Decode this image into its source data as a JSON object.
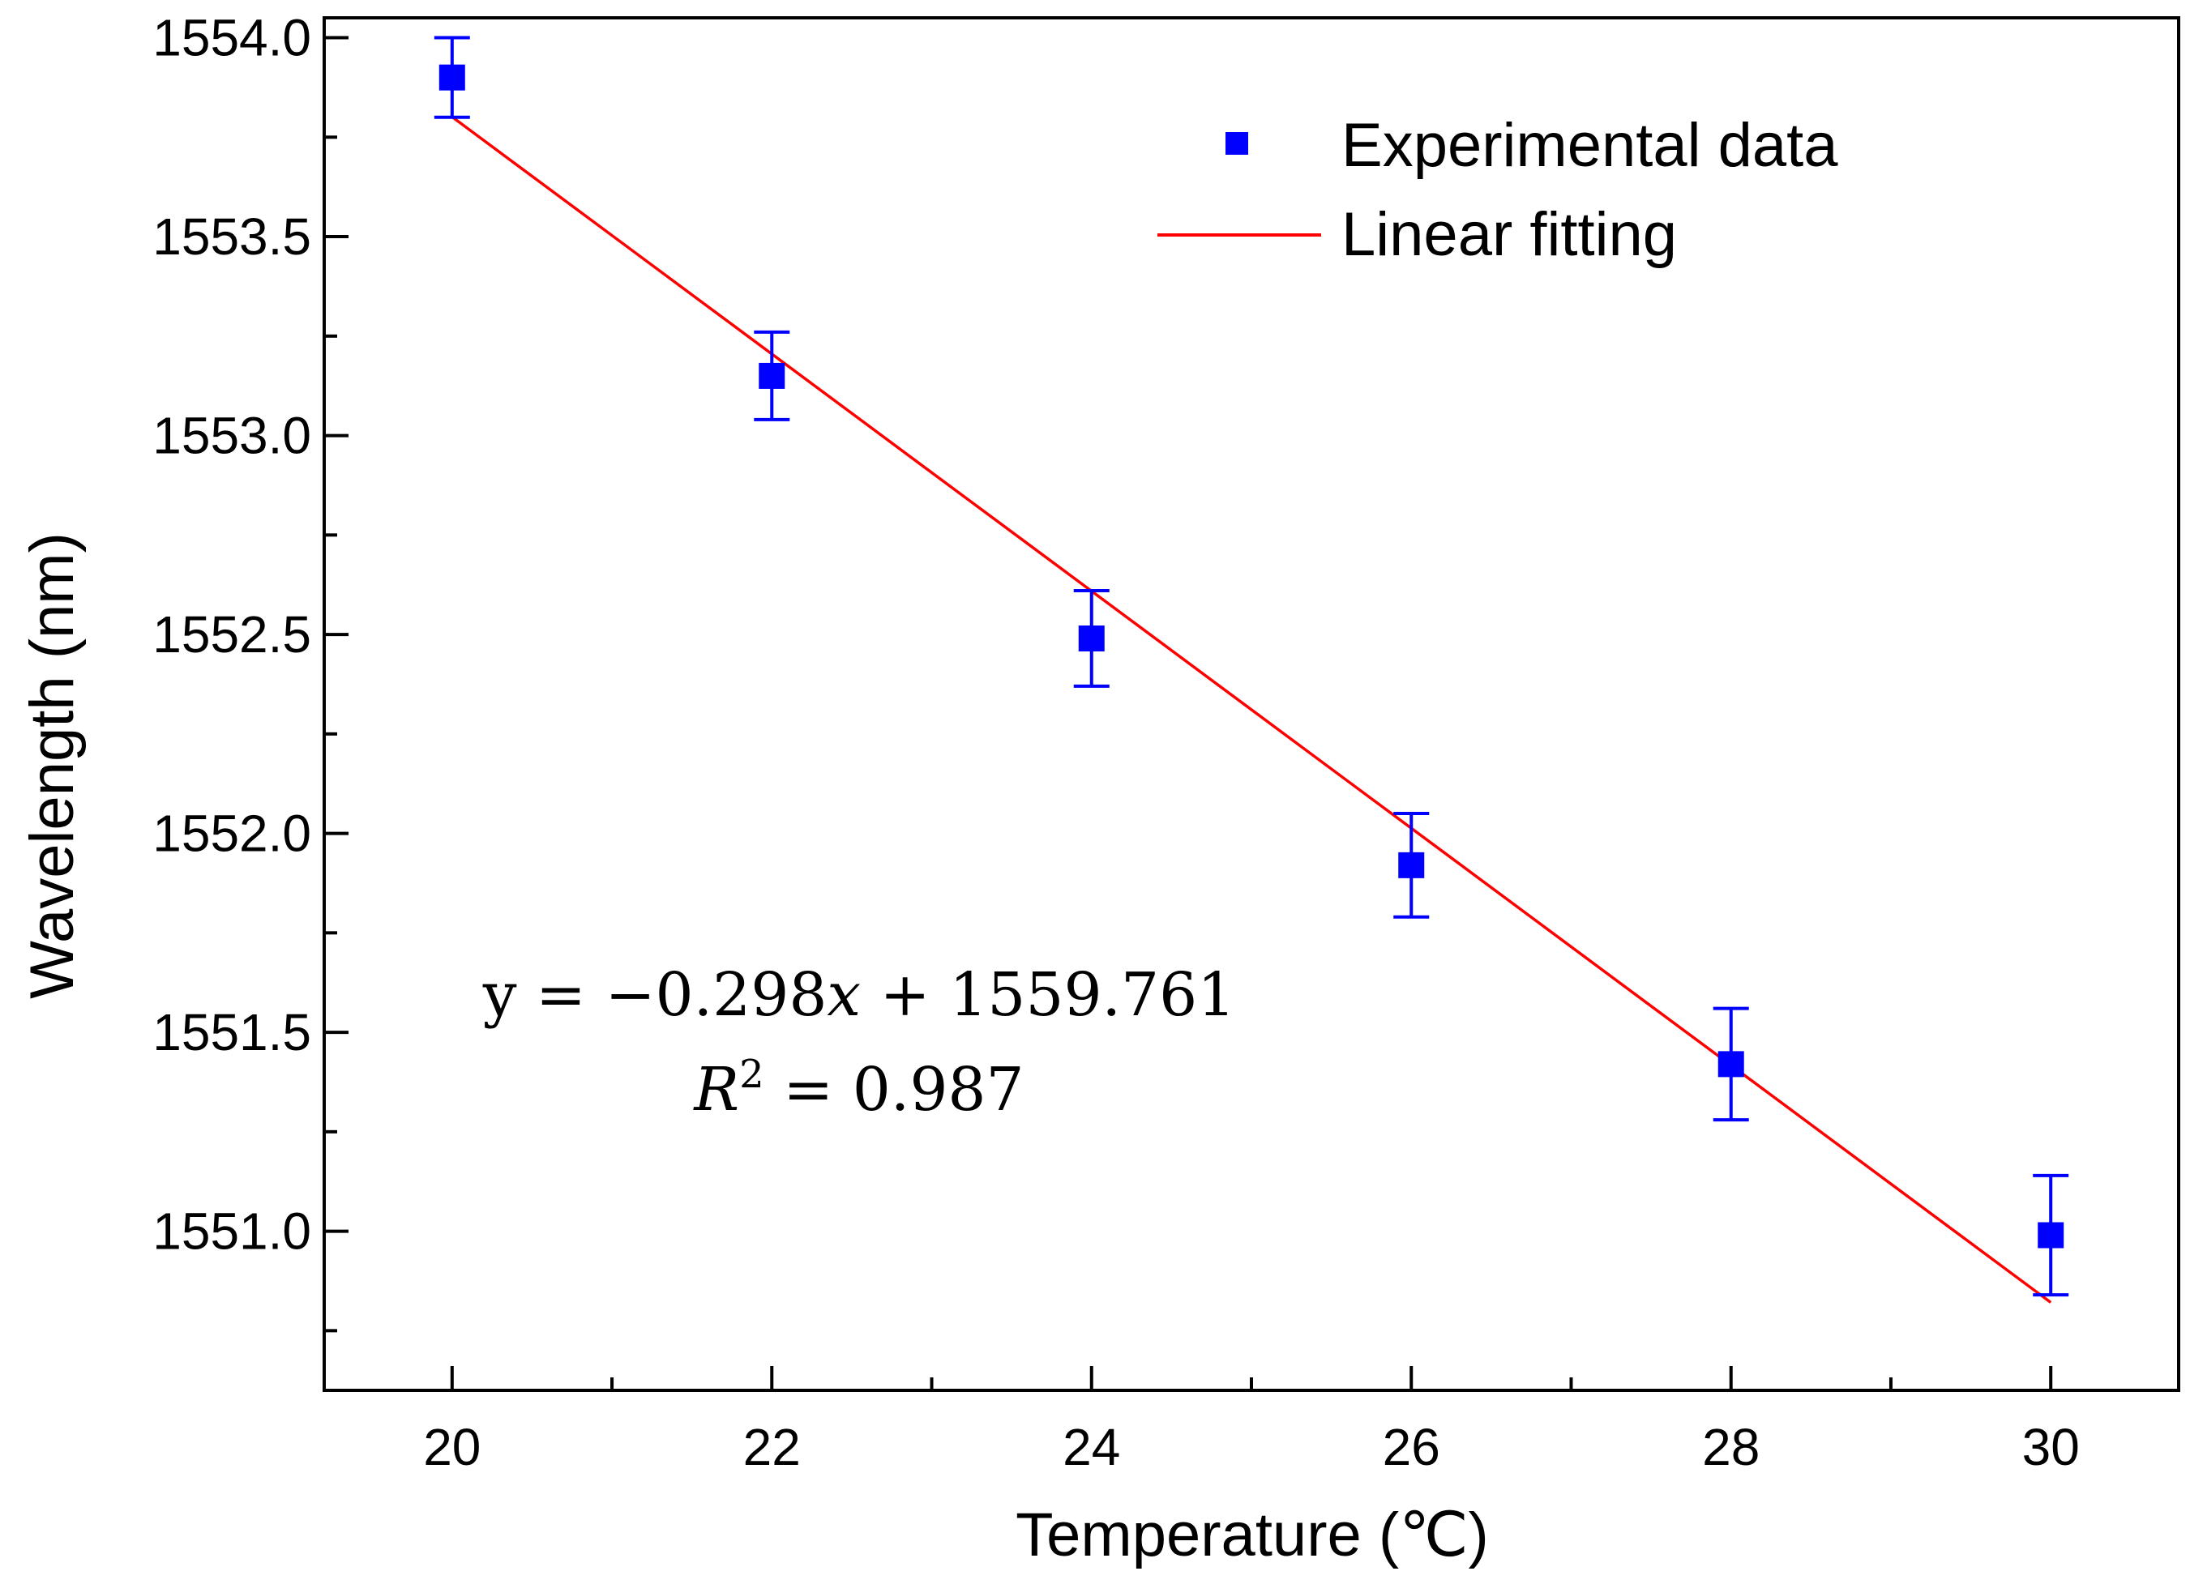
{
  "chart_data": {
    "type": "scatter",
    "title": "",
    "xlabel": "Temperature (℃)",
    "ylabel": "Wavelength (nm)",
    "xlim": [
      19.2,
      30.8
    ],
    "ylim": [
      1550.6,
      1554.05
    ],
    "x_ticks": [
      "20",
      "22",
      "24",
      "26",
      "28",
      "30"
    ],
    "x_tick_values": [
      20,
      22,
      24,
      26,
      28,
      30
    ],
    "x_minor_tick_values": [
      21,
      23,
      25,
      27,
      29
    ],
    "y_ticks": [
      "1551.0",
      "1551.5",
      "1552.0",
      "1552.5",
      "1553.0",
      "1553.5",
      "1554.0"
    ],
    "y_tick_values": [
      1551.0,
      1551.5,
      1552.0,
      1552.5,
      1553.0,
      1553.5,
      1554.0
    ],
    "y_minor_tick_values": [
      1550.75,
      1551.25,
      1551.75,
      1552.25,
      1552.75,
      1553.25,
      1553.75
    ],
    "series": [
      {
        "name": "Experimental data",
        "kind": "points-with-error-bars",
        "color": "#0000ff",
        "x": [
          20,
          22,
          24,
          26,
          28,
          30
        ],
        "y": [
          1553.9,
          1553.15,
          1552.49,
          1551.92,
          1551.42,
          1550.99
        ],
        "error": [
          0.1,
          0.11,
          0.12,
          0.13,
          0.14,
          0.15
        ]
      },
      {
        "name": "Linear fitting",
        "kind": "line",
        "color": "#ff0000",
        "slope": -0.298,
        "intercept": 1559.761,
        "x_range": [
          20,
          30
        ]
      }
    ],
    "legend": [
      "Experimental data",
      "Linear fitting"
    ],
    "legend_position": "top-right",
    "annotation": {
      "equation_prefix": "y = −0.298",
      "equation_var": "x",
      "equation_suffix": " + 1559.761",
      "r2_prefix": "R",
      "r2_exponent": "2",
      "r2_suffix": " = 0.987"
    }
  }
}
